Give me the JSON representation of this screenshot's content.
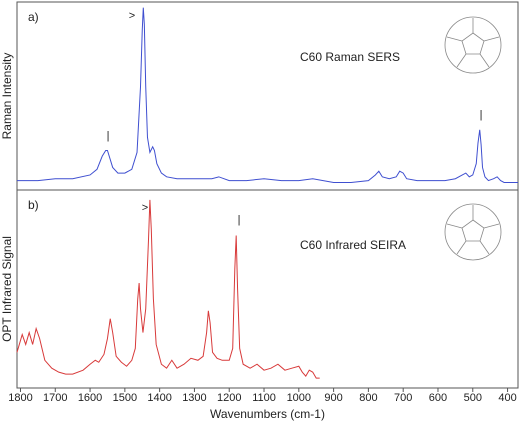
{
  "chart_data": [
    {
      "type": "line",
      "panel_label": "a)",
      "label": "C60 Raman SERS",
      "ylabel": "Raman Intensity",
      "color": "#3f4fd0",
      "annotations": [
        ">",
        "|",
        "|"
      ],
      "ylim": [
        0,
        100
      ],
      "x": [
        1810,
        1750,
        1700,
        1650,
        1600,
        1580,
        1565,
        1555,
        1550,
        1545,
        1535,
        1520,
        1500,
        1480,
        1465,
        1455,
        1450,
        1447,
        1444,
        1440,
        1435,
        1428,
        1420,
        1415,
        1408,
        1395,
        1380,
        1350,
        1300,
        1250,
        1230,
        1200,
        1150,
        1100,
        1050,
        1000,
        960,
        930,
        900,
        850,
        800,
        780,
        770,
        760,
        740,
        720,
        710,
        700,
        690,
        660,
        620,
        580,
        550,
        530,
        520,
        510,
        500,
        490,
        485,
        480,
        476,
        472,
        465,
        455,
        440,
        430,
        420,
        410,
        400,
        385,
        370
      ],
      "values": [
        5,
        5,
        6,
        6,
        8,
        11,
        18,
        21,
        21,
        18,
        12,
        9,
        9,
        11,
        20,
        55,
        85,
        97,
        88,
        55,
        28,
        20,
        23,
        21,
        14,
        9,
        7,
        6,
        6,
        6,
        7,
        5,
        5,
        6,
        5,
        5,
        6,
        5,
        4,
        4,
        5,
        8,
        10,
        7,
        6,
        7,
        10,
        9,
        6,
        5,
        5,
        5,
        6,
        8,
        9,
        7,
        8,
        14,
        25,
        32,
        24,
        12,
        7,
        5,
        6,
        7,
        5,
        4,
        4,
        4,
        4
      ]
    },
    {
      "type": "line",
      "panel_label": "b)",
      "label": "C60 Infrared SEIRA",
      "ylabel": "OPT Infrared Signal",
      "xlabel": "Wavenumbers (cm-1)",
      "color": "#d83a3a",
      "annotations": [
        ">",
        "|"
      ],
      "ylim": [
        0,
        100
      ],
      "xlim": [
        1810,
        370
      ],
      "xticks": [
        1800,
        1700,
        1600,
        1500,
        1400,
        1300,
        1200,
        1100,
        1000,
        900,
        800,
        700,
        600,
        500,
        400
      ],
      "x": [
        1810,
        1795,
        1785,
        1775,
        1765,
        1755,
        1745,
        1730,
        1710,
        1690,
        1670,
        1650,
        1620,
        1600,
        1585,
        1575,
        1560,
        1550,
        1542,
        1535,
        1525,
        1510,
        1495,
        1480,
        1470,
        1463,
        1459,
        1455,
        1448,
        1440,
        1432,
        1428,
        1424,
        1418,
        1410,
        1395,
        1380,
        1365,
        1350,
        1330,
        1310,
        1290,
        1275,
        1265,
        1260,
        1255,
        1248,
        1235,
        1220,
        1200,
        1190,
        1184,
        1180,
        1176,
        1170,
        1160,
        1140,
        1120,
        1100,
        1080,
        1060,
        1040,
        1020,
        1000,
        990,
        980,
        970,
        960,
        950,
        940
      ],
      "values": [
        18,
        27,
        22,
        28,
        22,
        30,
        25,
        14,
        10,
        8,
        7,
        7,
        9,
        12,
        14,
        13,
        17,
        25,
        35,
        28,
        16,
        13,
        11,
        14,
        20,
        45,
        53,
        40,
        28,
        40,
        75,
        95,
        80,
        45,
        22,
        12,
        10,
        14,
        10,
        12,
        15,
        14,
        16,
        28,
        39,
        33,
        18,
        15,
        14,
        14,
        20,
        60,
        77,
        50,
        20,
        12,
        10,
        12,
        9,
        10,
        12,
        9,
        10,
        11,
        8,
        6,
        9,
        8,
        5,
        5
      ]
    }
  ]
}
